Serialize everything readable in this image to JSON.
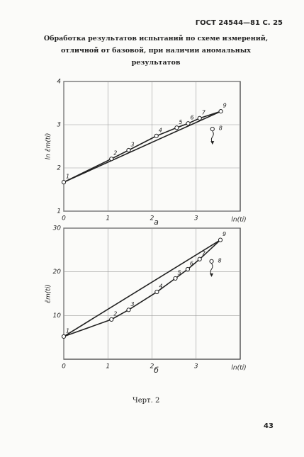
{
  "header": "ГОСТ 24544—81 С. 25",
  "title": "Обработка результатов испытаний по схеме измерений, отличной от базовой, при наличии аномальных результатов",
  "caption": "Черт. 2",
  "page_number": "43",
  "chart_data": [
    {
      "type": "scatter",
      "panel": "а",
      "x_label": "ln(ti)",
      "y_label": "ln ε̂m(ti)",
      "xlim": [
        0,
        4
      ],
      "ylim": [
        1,
        4
      ],
      "xticks": [
        0,
        1,
        2,
        3
      ],
      "yticks": [
        1,
        2,
        3,
        4
      ],
      "grid": true,
      "color": "#222",
      "points": {
        "labels": [
          "1",
          "2",
          "3",
          "4",
          "5",
          "6",
          "7",
          "9"
        ],
        "x": [
          0,
          1.08,
          1.47,
          2.1,
          2.56,
          2.82,
          3.08,
          3.56
        ],
        "y": [
          1.67,
          2.21,
          2.41,
          2.74,
          2.93,
          3.03,
          3.15,
          3.31
        ]
      },
      "outlier": {
        "label": "8",
        "x": 3.37,
        "y": 2.9
      }
    },
    {
      "type": "scatter",
      "panel": "б",
      "x_label": "ln(ti)",
      "y_label": "ε̃m(ti)",
      "xlim": [
        0,
        4
      ],
      "ylim": [
        0,
        30
      ],
      "xticks": [
        0,
        1,
        2,
        3
      ],
      "yticks": [
        10,
        20,
        30
      ],
      "grid": true,
      "color": "#222",
      "points": {
        "labels": [
          "1",
          "2",
          "3",
          "4",
          "5",
          "6",
          "7",
          "9"
        ],
        "x": [
          0,
          1.08,
          1.47,
          2.11,
          2.53,
          2.81,
          3.08,
          3.55
        ],
        "y": [
          5.2,
          9.1,
          11.3,
          15.4,
          18.5,
          20.6,
          22.9,
          27.3
        ]
      },
      "outlier": {
        "label": "8",
        "x": 3.35,
        "y": 22.4
      }
    }
  ]
}
